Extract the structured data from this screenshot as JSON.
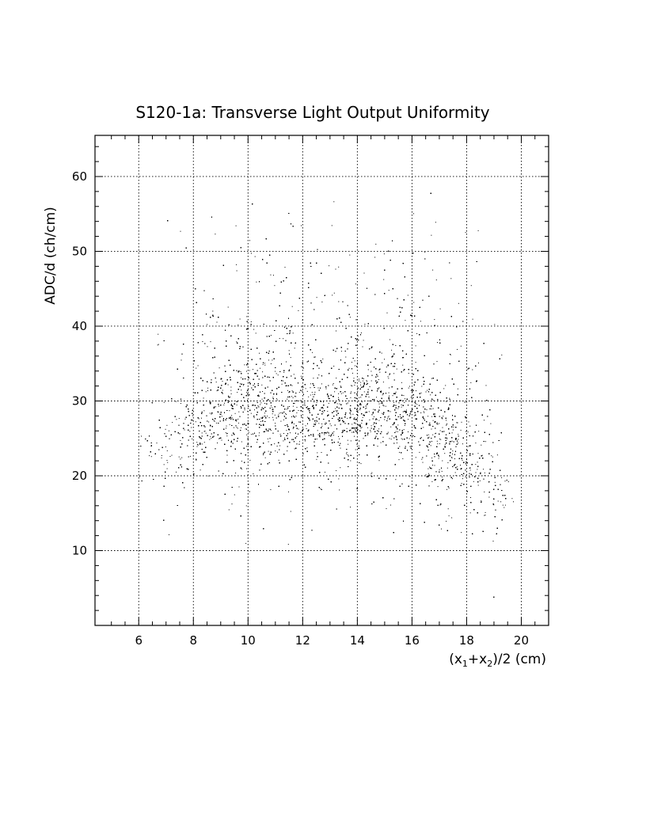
{
  "chart_data": {
    "type": "scatter",
    "title": "S120-1a: Transverse Light Output Uniformity",
    "xlabel": "(x1+x2)/2 (cm)",
    "xlabel_parts": {
      "open": "(x",
      "sub1": "1",
      "plus": "+x",
      "sub2": "2",
      "close": ")/2 (cm)"
    },
    "ylabel": "ADC/d (ch/cm)",
    "xlim": [
      4.4,
      21.0
    ],
    "ylim": [
      0,
      65.5
    ],
    "x_ticks": [
      6,
      8,
      10,
      12,
      14,
      16,
      18,
      20
    ],
    "y_ticks": [
      10,
      20,
      30,
      40,
      50,
      60
    ],
    "grid": true,
    "density_profile": {
      "x": [
        6.0,
        7.0,
        8.0,
        9.0,
        10.0,
        11.0,
        12.0,
        13.0,
        14.0,
        15.0,
        16.0,
        17.0,
        18.0,
        18.5,
        19.0,
        19.5
      ],
      "band_center_y": [
        21,
        23,
        26,
        28,
        28.5,
        28.5,
        28.5,
        28,
        28.5,
        29,
        28,
        25,
        22,
        20,
        18,
        16
      ],
      "relative_density": [
        0.1,
        0.25,
        0.55,
        0.85,
        1.0,
        1.0,
        1.0,
        1.0,
        1.0,
        1.0,
        0.95,
        0.8,
        0.6,
        0.45,
        0.3,
        0.12
      ]
    },
    "x_range_of_points": [
      6.0,
      19.6
    ],
    "y_range_of_points": [
      2.5,
      60.0
    ]
  }
}
